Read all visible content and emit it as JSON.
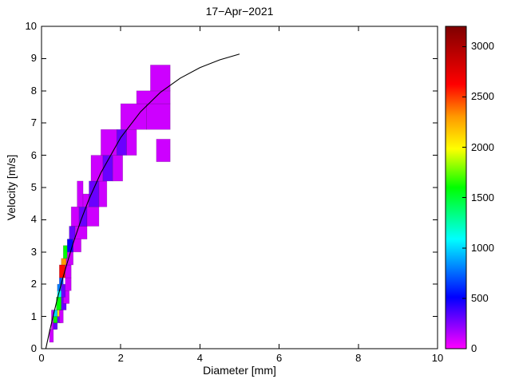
{
  "chart_data": {
    "type": "heatmap",
    "title": "17−Apr−2021",
    "xlabel": "Diameter [mm]",
    "ylabel": "Velocity [m/s]",
    "xlim": [
      0,
      10
    ],
    "ylim": [
      0,
      10
    ],
    "xticks": [
      0,
      2,
      4,
      6,
      8,
      10
    ],
    "yticks": [
      0,
      1,
      2,
      3,
      4,
      5,
      6,
      7,
      8,
      9,
      10
    ],
    "grid": false,
    "legend": "none",
    "colorbar": {
      "position": "right",
      "vmin": 0,
      "vmax": 3200,
      "ticks": [
        0,
        500,
        1000,
        1500,
        2000,
        2500,
        3000
      ],
      "colormap": [
        [
          0.0,
          "#ff00ff"
        ],
        [
          0.16,
          "#0000ff"
        ],
        [
          0.34,
          "#00ffff"
        ],
        [
          0.5,
          "#00ff00"
        ],
        [
          0.62,
          "#ffff00"
        ],
        [
          0.72,
          "#ff9900"
        ],
        [
          0.82,
          "#ff0000"
        ],
        [
          1.0,
          "#7f0000"
        ]
      ]
    },
    "cells_format": [
      "d_min_mm",
      "d_max_mm",
      "v_min_ms",
      "v_max_ms",
      "count"
    ],
    "cells": [
      [
        0.2,
        0.3,
        0.2,
        0.6,
        100
      ],
      [
        0.25,
        0.375,
        0.6,
        0.8,
        100
      ],
      [
        0.3,
        0.4,
        0.6,
        0.8,
        300
      ],
      [
        0.25,
        0.35,
        0.8,
        1.2,
        100
      ],
      [
        0.3,
        0.4,
        0.8,
        1.0,
        1600
      ],
      [
        0.3,
        0.4,
        1.0,
        1.2,
        1000
      ],
      [
        0.4,
        0.5,
        0.8,
        1.0,
        300
      ],
      [
        0.4,
        0.5,
        1.0,
        1.2,
        2050
      ],
      [
        0.45,
        0.55,
        0.8,
        1.2,
        100
      ],
      [
        0.375,
        0.5,
        1.2,
        1.6,
        1600
      ],
      [
        0.5,
        0.625,
        1.2,
        1.6,
        300
      ],
      [
        0.55,
        0.7,
        1.4,
        1.8,
        100
      ],
      [
        0.4,
        0.5,
        1.6,
        1.8,
        1100
      ],
      [
        0.4,
        0.5,
        1.8,
        2.0,
        800
      ],
      [
        0.5,
        0.6,
        1.6,
        2.0,
        300
      ],
      [
        0.6,
        0.75,
        1.8,
        2.2,
        100
      ],
      [
        0.45,
        0.55,
        2.0,
        2.2,
        700
      ],
      [
        0.45,
        0.6,
        2.2,
        2.6,
        2600
      ],
      [
        0.5,
        0.625,
        2.6,
        2.8,
        2300
      ],
      [
        0.6,
        0.75,
        2.2,
        2.6,
        100
      ],
      [
        0.625,
        0.8,
        2.6,
        3.0,
        100
      ],
      [
        0.55,
        0.65,
        2.8,
        3.2,
        1600
      ],
      [
        0.65,
        0.8,
        3.0,
        3.4,
        500
      ],
      [
        0.8,
        1.0,
        3.0,
        3.4,
        100
      ],
      [
        0.7,
        0.85,
        3.4,
        3.8,
        300
      ],
      [
        0.85,
        1.15,
        3.4,
        3.8,
        100
      ],
      [
        0.75,
        0.95,
        3.8,
        4.4,
        100
      ],
      [
        0.95,
        1.15,
        3.8,
        4.4,
        300
      ],
      [
        1.15,
        1.45,
        3.8,
        4.4,
        100
      ],
      [
        0.9,
        1.05,
        4.4,
        5.2,
        100
      ],
      [
        1.05,
        1.2,
        4.4,
        4.8,
        100
      ],
      [
        1.2,
        1.45,
        4.4,
        5.2,
        300
      ],
      [
        1.45,
        1.65,
        4.4,
        5.2,
        100
      ],
      [
        1.25,
        1.55,
        5.2,
        6.0,
        100
      ],
      [
        1.55,
        1.8,
        5.2,
        6.0,
        300
      ],
      [
        1.8,
        2.05,
        5.2,
        6.0,
        100
      ],
      [
        1.5,
        1.9,
        6.0,
        6.8,
        100
      ],
      [
        1.9,
        2.15,
        6.0,
        6.8,
        300
      ],
      [
        2.15,
        2.4,
        6.0,
        6.8,
        100
      ],
      [
        2.9,
        3.25,
        5.8,
        6.5,
        100
      ],
      [
        2.0,
        2.65,
        6.8,
        7.6,
        100
      ],
      [
        2.65,
        3.25,
        6.8,
        7.6,
        100
      ],
      [
        2.4,
        3.25,
        7.6,
        8.0,
        100
      ],
      [
        2.75,
        3.25,
        8.0,
        8.8,
        100
      ]
    ],
    "curve": {
      "name": "terminal-velocity-curve",
      "color": "#000000",
      "x": [
        0.11,
        0.2,
        0.3,
        0.4,
        0.5,
        0.6,
        0.8,
        1.0,
        1.2,
        1.5,
        2.0,
        2.5,
        3.0,
        3.5,
        4.0,
        4.5,
        5.0
      ],
      "y": [
        0.01,
        0.52,
        1.05,
        1.55,
        2.02,
        2.46,
        3.28,
        4.0,
        4.64,
        5.46,
        6.55,
        7.35,
        7.95,
        8.39,
        8.72,
        8.96,
        9.14
      ]
    }
  }
}
